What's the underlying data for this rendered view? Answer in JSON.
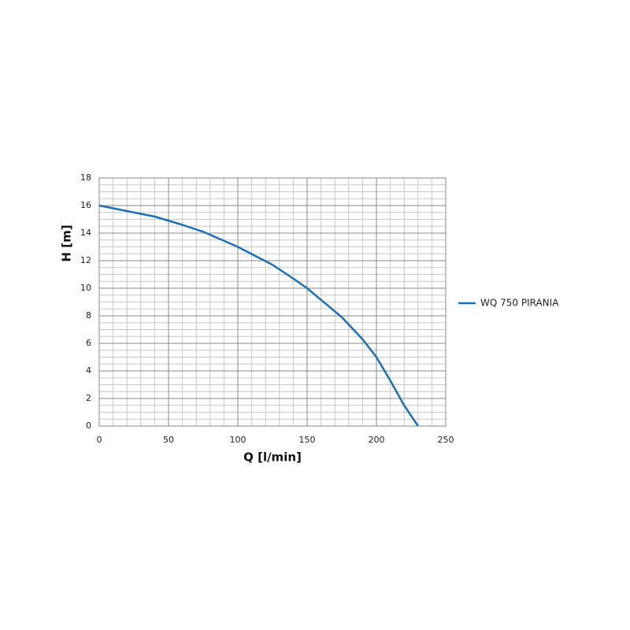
{
  "chart_data": {
    "type": "line",
    "x_label": "Q [l/min]",
    "y_label": "H [m]",
    "xlim": [
      0,
      250
    ],
    "xticks": [
      0,
      50,
      100,
      150,
      200,
      250
    ],
    "ylim": [
      0,
      18
    ],
    "yticks": [
      0,
      2,
      4,
      6,
      8,
      10,
      12,
      14,
      16,
      18
    ],
    "grid": true,
    "minor_grid_divisions": [
      5,
      4
    ],
    "legend": "right",
    "x": [
      0,
      10,
      20,
      30,
      40,
      50,
      60,
      75,
      100,
      125,
      140,
      150,
      175,
      190,
      200,
      210,
      220,
      230
    ],
    "series": [
      {
        "name": "WQ 750 PIRANIA",
        "color": "#1f6fb4",
        "values": [
          16,
          15.8,
          15.6,
          15.4,
          15.2,
          14.9,
          14.6,
          14.1,
          13,
          11.7,
          10.7,
          10,
          7.9,
          6.3,
          5,
          3.3,
          1.5,
          0
        ]
      }
    ]
  }
}
